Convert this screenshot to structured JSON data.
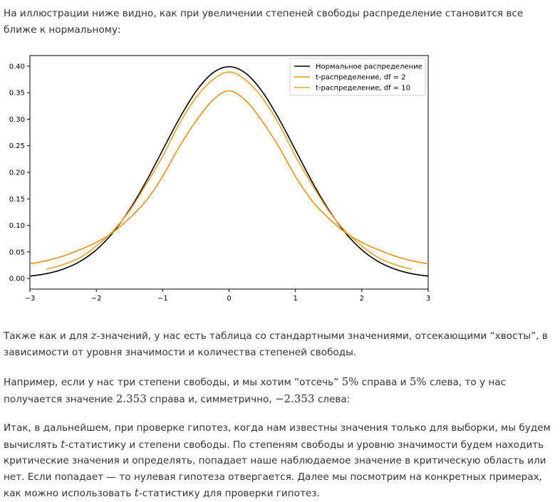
{
  "intro": {
    "text": "На иллюстрации ниже видно, как при увеличении степеней свободы распределение становится все ближе к нормальному:"
  },
  "chart_data": {
    "type": "line",
    "title": "",
    "xlabel": "",
    "ylabel": "",
    "xlim": [
      -3,
      3
    ],
    "ylim": [
      -0.02,
      0.42
    ],
    "x_ticks": [
      -3,
      -2,
      -1,
      0,
      1,
      2,
      3
    ],
    "x_tick_labels": [
      "−3",
      "−2",
      "−1",
      "0",
      "1",
      "2",
      "3"
    ],
    "y_ticks": [
      0.0,
      0.05,
      0.1,
      0.15,
      0.2,
      0.25,
      0.3,
      0.35,
      0.4
    ],
    "y_tick_labels": [
      "0.00",
      "0.05",
      "0.10",
      "0.15",
      "0.20",
      "0.25",
      "0.30",
      "0.35",
      "0.40"
    ],
    "grid": false,
    "legend_position": "top-right",
    "series": [
      {
        "name": "Нормальное распределение",
        "color": "#000000",
        "x": [
          -3,
          -2.75,
          -2.5,
          -2.25,
          -2,
          -1.75,
          -1.5,
          -1.25,
          -1,
          -0.75,
          -0.5,
          -0.25,
          0,
          0.25,
          0.5,
          0.75,
          1,
          1.25,
          1.5,
          1.75,
          2,
          2.25,
          2.5,
          2.75,
          3
        ],
        "y": [
          0.0044,
          0.0091,
          0.0175,
          0.0317,
          0.054,
          0.0863,
          0.1295,
          0.1826,
          0.242,
          0.3011,
          0.3521,
          0.3867,
          0.3989,
          0.3867,
          0.3521,
          0.3011,
          0.242,
          0.1826,
          0.1295,
          0.0863,
          0.054,
          0.0317,
          0.0175,
          0.0091,
          0.0044
        ]
      },
      {
        "name": "t-распределение, df = 2",
        "color": "#e8901a",
        "x": [
          -3,
          -2.75,
          -2.5,
          -2.25,
          -2,
          -1.75,
          -1.5,
          -1.25,
          -1,
          -0.75,
          -0.5,
          -0.25,
          0,
          0.25,
          0.5,
          0.75,
          1,
          1.25,
          1.5,
          1.75,
          2,
          2.25,
          2.5,
          2.75,
          3
        ],
        "y": [
          0.0274,
          0.0336,
          0.0422,
          0.0541,
          0.068,
          0.0868,
          0.1134,
          0.1463,
          0.1925,
          0.2481,
          0.2962,
          0.3353,
          0.3536,
          0.3353,
          0.2962,
          0.2481,
          0.1925,
          0.1463,
          0.1134,
          0.0868,
          0.068,
          0.0541,
          0.0422,
          0.0336,
          0.0274
        ]
      },
      {
        "name": "t-распределение, df = 10",
        "color": "#e8a22c",
        "x": [
          -2.75,
          -2.5,
          -2.25,
          -2,
          -1.75,
          -1.5,
          -1.25,
          -1,
          -0.75,
          -0.5,
          -0.25,
          0,
          0.25,
          0.5,
          0.75,
          1,
          1.25,
          1.5,
          1.75,
          2,
          2.25,
          2.5,
          2.75
        ],
        "y": [
          0.0175,
          0.0261,
          0.0393,
          0.0611,
          0.0893,
          0.1274,
          0.1771,
          0.2304,
          0.2911,
          0.3403,
          0.3738,
          0.3891,
          0.3738,
          0.3403,
          0.2911,
          0.2304,
          0.1771,
          0.1274,
          0.0893,
          0.0611,
          0.0393,
          0.0261,
          0.0175
        ]
      }
    ]
  },
  "p2": {
    "a": "Также как и для ",
    "m": "z",
    "b": "-значений, у нас есть таблица со стандартными значениями, отсекающими “хвосты”, в зависимости от уровня значимости и количества степеней свободы."
  },
  "p3": {
    "a": "Например, если у нас три степени свободы, и мы хотим “отсечь” ",
    "m1": "5%",
    "b": " справа и ",
    "m2": "5%",
    "c": " слева, то у нас получается значение ",
    "m3": "2.353",
    "d": " справа и, симметрично, ",
    "m4": "−2.353",
    "e": " слева:"
  },
  "p4": {
    "a": "Итак, в дальнейшем, при проверке гипотез, когда нам известны значения только для выборки, мы будем вычислять ",
    "m1": "t",
    "b": "-статистику и степени свободы. По степеням свободы и уровню значимости будем находить критические значения и определять, попадает наше наблюдаемое значение в критическую область или нет. Если попадает — то нулевая гипотеза отвергается. Далее мы посмотрим на конкретных примерах, как можно использовать ",
    "m2": "t",
    "c": "-статистику для проверки гипотез."
  }
}
